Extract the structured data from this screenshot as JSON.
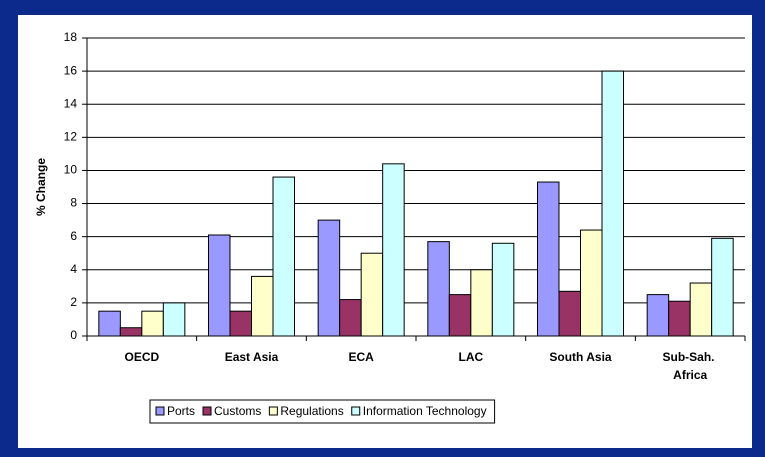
{
  "chart_data": {
    "type": "bar",
    "y_label": "% Change",
    "categories": [
      "OECD",
      "East Asia",
      "ECA",
      "LAC",
      "South Asia",
      "Sub-Sah. Africa"
    ],
    "series": [
      {
        "name": "Ports",
        "color": "#9999ff",
        "values": [
          1.5,
          6.1,
          7.0,
          5.7,
          9.3,
          2.5
        ]
      },
      {
        "name": "Customs",
        "color": "#993366",
        "values": [
          0.5,
          1.5,
          2.2,
          2.5,
          2.7,
          2.1
        ]
      },
      {
        "name": "Regulations",
        "color": "#ffffcc",
        "values": [
          1.5,
          3.6,
          5.0,
          4.0,
          6.4,
          3.2
        ]
      },
      {
        "name": "Information Technology",
        "color": "#ccffff",
        "values": [
          2.0,
          9.6,
          10.4,
          5.6,
          16.0,
          5.9
        ]
      }
    ],
    "ylim": [
      0,
      18
    ],
    "yticks": [
      0,
      2,
      4,
      6,
      8,
      10,
      12,
      14,
      16,
      18
    ],
    "grid": true,
    "legend": "bottom"
  }
}
